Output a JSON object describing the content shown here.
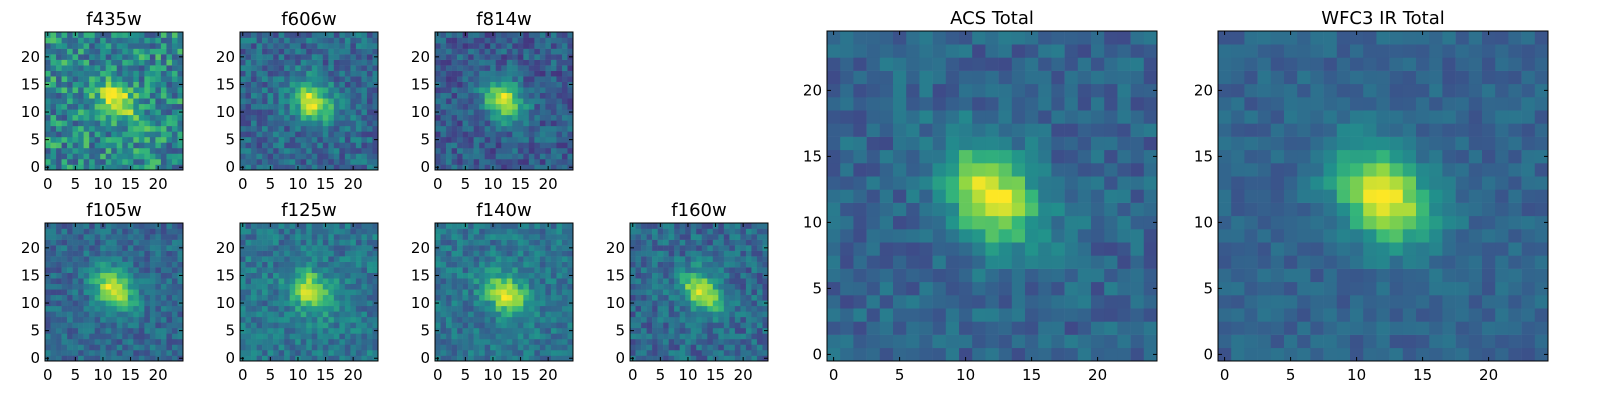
{
  "chart_data": [
    {
      "type": "heatmap",
      "title": "f435w",
      "colormap": "viridis",
      "xticks": [
        0,
        5,
        10,
        15,
        20
      ],
      "yticks": [
        0,
        5,
        10,
        15,
        20
      ],
      "xlim": [
        -0.5,
        24.5
      ],
      "ylim": [
        -0.5,
        24.5
      ],
      "grid": false,
      "grid_size": 25,
      "source_center": [
        12.5,
        12
      ],
      "source_peak": 0.95,
      "noise": 0.5,
      "background": 0.55
    },
    {
      "type": "heatmap",
      "title": "f606w",
      "colormap": "viridis",
      "xticks": [
        0,
        5,
        10,
        15,
        20
      ],
      "yticks": [
        0,
        5,
        10,
        15,
        20
      ],
      "xlim": [
        -0.5,
        24.5
      ],
      "ylim": [
        -0.5,
        24.5
      ],
      "grid": false,
      "grid_size": 25,
      "source_center": [
        12.5,
        12
      ],
      "source_peak": 0.95,
      "noise": 0.38,
      "background": 0.42
    },
    {
      "type": "heatmap",
      "title": "f814w",
      "colormap": "viridis",
      "xticks": [
        0,
        5,
        10,
        15,
        20
      ],
      "yticks": [
        0,
        5,
        10,
        15,
        20
      ],
      "xlim": [
        -0.5,
        24.5
      ],
      "ylim": [
        -0.5,
        24.5
      ],
      "grid": false,
      "grid_size": 25,
      "source_center": [
        12,
        12
      ],
      "source_peak": 0.97,
      "noise": 0.36,
      "background": 0.36
    },
    {
      "type": "heatmap",
      "title": "f105w",
      "colormap": "viridis",
      "xticks": [
        0,
        5,
        10,
        15,
        20
      ],
      "yticks": [
        0,
        5,
        10,
        15,
        20
      ],
      "xlim": [
        -0.5,
        24.5
      ],
      "ylim": [
        -0.5,
        24.5
      ],
      "grid": false,
      "grid_size": 25,
      "source_center": [
        12,
        12.5
      ],
      "source_peak": 0.97,
      "noise": 0.3,
      "background": 0.42
    },
    {
      "type": "heatmap",
      "title": "f125w",
      "colormap": "viridis",
      "xticks": [
        0,
        5,
        10,
        15,
        20
      ],
      "yticks": [
        0,
        5,
        10,
        15,
        20
      ],
      "xlim": [
        -0.5,
        24.5
      ],
      "ylim": [
        -0.5,
        24.5
      ],
      "grid": false,
      "grid_size": 25,
      "source_center": [
        12.5,
        12
      ],
      "source_peak": 0.95,
      "noise": 0.32,
      "background": 0.48
    },
    {
      "type": "heatmap",
      "title": "f140w",
      "colormap": "viridis",
      "xticks": [
        0,
        5,
        10,
        15,
        20
      ],
      "yticks": [
        0,
        5,
        10,
        15,
        20
      ],
      "xlim": [
        -0.5,
        24.5
      ],
      "ylim": [
        -0.5,
        24.5
      ],
      "grid": false,
      "grid_size": 25,
      "source_center": [
        12.5,
        11.5
      ],
      "source_peak": 0.95,
      "noise": 0.3,
      "background": 0.48
    },
    {
      "type": "heatmap",
      "title": "f160w",
      "colormap": "viridis",
      "xticks": [
        0,
        5,
        10,
        15,
        20
      ],
      "yticks": [
        0,
        5,
        10,
        15,
        20
      ],
      "xlim": [
        -0.5,
        24.5
      ],
      "ylim": [
        -0.5,
        24.5
      ],
      "grid": false,
      "grid_size": 25,
      "source_center": [
        12.5,
        12
      ],
      "source_peak": 0.97,
      "noise": 0.35,
      "background": 0.42
    },
    {
      "type": "heatmap",
      "title": "ACS Total",
      "colormap": "viridis",
      "xticks": [
        0,
        5,
        10,
        15,
        20
      ],
      "yticks": [
        0,
        5,
        10,
        15,
        20
      ],
      "xlim": [
        -0.5,
        24.5
      ],
      "ylim": [
        -0.5,
        24.5
      ],
      "grid": false,
      "grid_size": 25,
      "source_center": [
        12,
        12
      ],
      "source_peak": 1.0,
      "noise": 0.26,
      "background": 0.4
    },
    {
      "type": "heatmap",
      "title": "WFC3 IR Total",
      "colormap": "viridis",
      "xticks": [
        0,
        5,
        10,
        15,
        20
      ],
      "yticks": [
        0,
        5,
        10,
        15,
        20
      ],
      "xlim": [
        -0.5,
        24.5
      ],
      "ylim": [
        -0.5,
        24.5
      ],
      "grid": false,
      "grid_size": 25,
      "source_center": [
        12,
        12
      ],
      "source_peak": 1.0,
      "noise": 0.18,
      "background": 0.4
    }
  ],
  "colors": {
    "viridis_low": "#440154",
    "viridis_mid": "#21918c",
    "viridis_high": "#fde725",
    "frame": "#000000",
    "background": "#ffffff"
  }
}
